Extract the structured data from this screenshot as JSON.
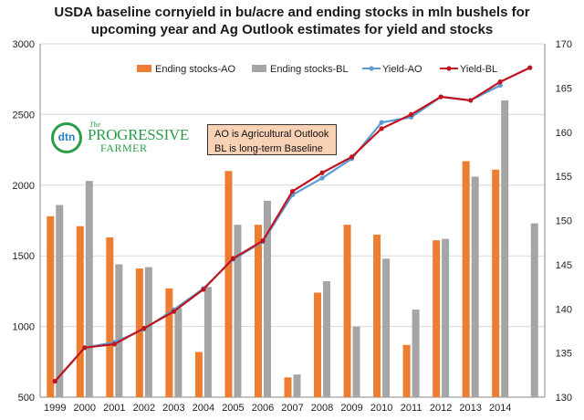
{
  "title_lines": [
    "USDA  baseline cornyield in bu/acre and ending stocks in mln bushels for",
    "upcoming year and Ag Outlook estimates for yield and stocks"
  ],
  "note_lines": [
    "AO is Agricultural Outlook",
    "BL is long-term Baseline"
  ],
  "logo": {
    "badge": "dtn",
    "the": "The",
    "word1": "PROGRESSIVE",
    "word2": "FARMER"
  },
  "colors": {
    "ending_stocks_ao": "#ed7d31",
    "ending_stocks_bl": "#a5a5a5",
    "yield_ao": "#5b9bd5",
    "yield_bl": "#c0141e"
  },
  "chart_data": {
    "type": "bar",
    "categories": [
      "1999",
      "2000",
      "2001",
      "2002",
      "2003",
      "2004",
      "2005",
      "2006",
      "2007",
      "2008",
      "2009",
      "2010",
      "2011",
      "2012",
      "2013",
      "2014",
      ""
    ],
    "left_axis": {
      "min": 500,
      "max": 3000,
      "ticks": [
        500,
        1000,
        1500,
        2000,
        2500,
        3000
      ]
    },
    "right_axis": {
      "min": 130,
      "max": 170,
      "ticks": [
        130,
        135,
        140,
        145,
        150,
        155,
        160,
        165,
        170
      ]
    },
    "grid": "horizontal",
    "legend_position": "top",
    "series": [
      {
        "name": "Ending stocks-AO",
        "type": "bar",
        "axis": "left",
        "values": [
          1780,
          1710,
          1630,
          1410,
          1270,
          820,
          2100,
          1720,
          640,
          1240,
          1720,
          1650,
          870,
          1610,
          2170,
          2110,
          null
        ]
      },
      {
        "name": "Ending stocks-BL",
        "type": "bar",
        "axis": "left",
        "values": [
          1860,
          2030,
          1440,
          1420,
          1130,
          1280,
          1720,
          1890,
          660,
          1320,
          1000,
          1480,
          1120,
          1620,
          2060,
          2600,
          1730
        ]
      },
      {
        "name": "Yield-AO",
        "type": "line",
        "axis": "right",
        "values": [
          131.8,
          135.6,
          136.2,
          137.7,
          139.9,
          142.3,
          145.6,
          147.6,
          152.9,
          154.8,
          157.0,
          161.1,
          161.7,
          164.0,
          163.6,
          165.3,
          null
        ]
      },
      {
        "name": "Yield-BL",
        "type": "line",
        "axis": "right",
        "values": [
          131.8,
          135.6,
          136.0,
          137.8,
          139.7,
          142.2,
          145.7,
          147.7,
          153.3,
          155.4,
          157.2,
          160.4,
          162.0,
          164.0,
          163.6,
          165.7,
          167.3
        ]
      }
    ]
  }
}
